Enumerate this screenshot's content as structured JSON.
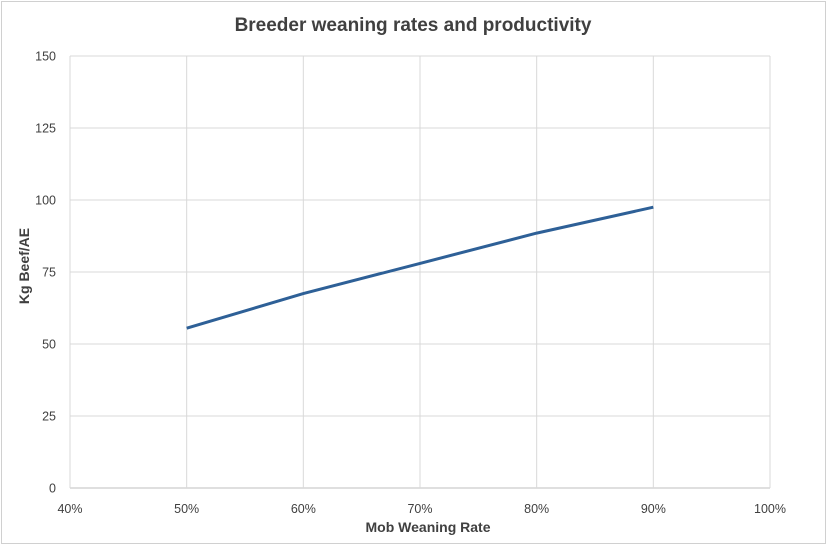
{
  "chart_data": {
    "type": "line",
    "title": "Breeder weaning rates and productivity",
    "xlabel": "Mob Weaning Rate",
    "ylabel": "Kg Beef/AE",
    "x_ticks": [
      "40%",
      "50%",
      "60%",
      "70%",
      "80%",
      "90%",
      "100%"
    ],
    "y_ticks": [
      "0",
      "25",
      "50",
      "75",
      "100",
      "125",
      "150"
    ],
    "xlim": [
      0.4,
      1.0
    ],
    "ylim": [
      0,
      150
    ],
    "grid": true,
    "legend": "none",
    "series": [
      {
        "color": "#2e6097",
        "x": [
          0.5,
          0.6,
          0.7,
          0.8,
          0.9
        ],
        "y": [
          55.5,
          67.5,
          78,
          88.5,
          97.5
        ]
      }
    ]
  }
}
